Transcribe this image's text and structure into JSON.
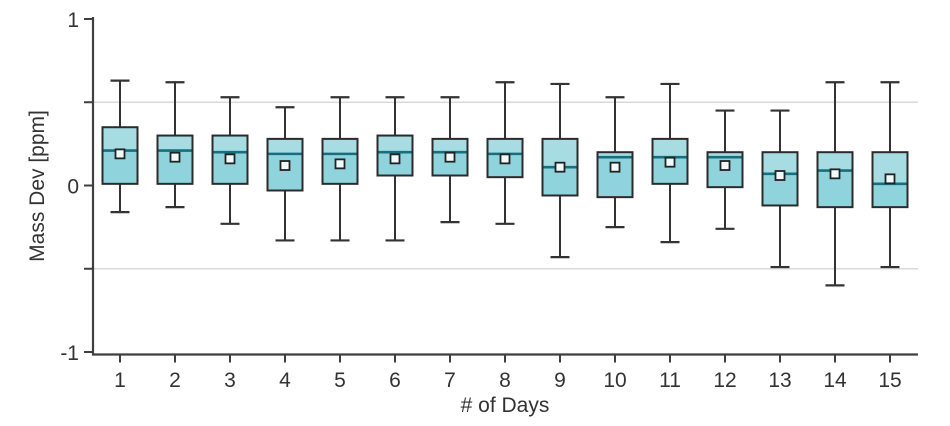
{
  "colors": {
    "box_fill_upper": "#a7dce3",
    "box_fill_lower": "#8fd3dc",
    "box_border": "#2b2b2b",
    "median_line": "#166f7d",
    "whisker": "#333333",
    "mean_marker_fill": "#f0fafa",
    "mean_marker_border": "#222222",
    "axis": "#3f3f3f",
    "gridline": "#d9d9d9",
    "text": "#333333",
    "background": "#ffffff"
  },
  "chart_data": {
    "type": "boxplot",
    "title": "",
    "xlabel": "# of Days",
    "ylabel": "Mass Dev [ppm]",
    "ylim": [
      -1,
      1
    ],
    "grid": "horizontal gridlines at +0.5 and -0.5 only",
    "legend_position": "none",
    "y_ticks_all": [
      1,
      0.5,
      0,
      -0.5,
      -1
    ],
    "y_ticks_labeled": [
      {
        "value": 1,
        "label": "1"
      },
      {
        "value": 0,
        "label": "0"
      },
      {
        "value": -1,
        "label": "-1"
      }
    ],
    "gridlines_y": [
      0.5,
      -0.5
    ],
    "categories": [
      "1",
      "2",
      "3",
      "4",
      "5",
      "6",
      "7",
      "8",
      "9",
      "10",
      "11",
      "12",
      "13",
      "14",
      "15"
    ],
    "series": [
      {
        "day": 1,
        "whisker_high": 0.63,
        "q3": 0.35,
        "median": 0.21,
        "mean": 0.19,
        "q1": 0.01,
        "whisker_low": -0.16
      },
      {
        "day": 2,
        "whisker_high": 0.62,
        "q3": 0.3,
        "median": 0.21,
        "mean": 0.17,
        "q1": 0.01,
        "whisker_low": -0.13
      },
      {
        "day": 3,
        "whisker_high": 0.53,
        "q3": 0.3,
        "median": 0.2,
        "mean": 0.16,
        "q1": 0.01,
        "whisker_low": -0.23
      },
      {
        "day": 4,
        "whisker_high": 0.47,
        "q3": 0.28,
        "median": 0.19,
        "mean": 0.12,
        "q1": -0.03,
        "whisker_low": -0.33
      },
      {
        "day": 5,
        "whisker_high": 0.53,
        "q3": 0.28,
        "median": 0.19,
        "mean": 0.13,
        "q1": 0.01,
        "whisker_low": -0.33
      },
      {
        "day": 6,
        "whisker_high": 0.53,
        "q3": 0.3,
        "median": 0.2,
        "mean": 0.16,
        "q1": 0.06,
        "whisker_low": -0.33
      },
      {
        "day": 7,
        "whisker_high": 0.53,
        "q3": 0.28,
        "median": 0.2,
        "mean": 0.17,
        "q1": 0.06,
        "whisker_low": -0.22
      },
      {
        "day": 8,
        "whisker_high": 0.62,
        "q3": 0.28,
        "median": 0.19,
        "mean": 0.16,
        "q1": 0.05,
        "whisker_low": -0.23
      },
      {
        "day": 9,
        "whisker_high": 0.61,
        "q3": 0.28,
        "median": 0.11,
        "mean": 0.11,
        "q1": -0.06,
        "whisker_low": -0.43
      },
      {
        "day": 10,
        "whisker_high": 0.53,
        "q3": 0.2,
        "median": 0.17,
        "mean": 0.11,
        "q1": -0.07,
        "whisker_low": -0.25
      },
      {
        "day": 11,
        "whisker_high": 0.61,
        "q3": 0.28,
        "median": 0.17,
        "mean": 0.14,
        "q1": 0.01,
        "whisker_low": -0.34
      },
      {
        "day": 12,
        "whisker_high": 0.45,
        "q3": 0.2,
        "median": 0.17,
        "mean": 0.12,
        "q1": -0.01,
        "whisker_low": -0.26
      },
      {
        "day": 13,
        "whisker_high": 0.45,
        "q3": 0.2,
        "median": 0.07,
        "mean": 0.06,
        "q1": -0.12,
        "whisker_low": -0.49
      },
      {
        "day": 14,
        "whisker_high": 0.62,
        "q3": 0.2,
        "median": 0.09,
        "mean": 0.07,
        "q1": -0.13,
        "whisker_low": -0.6
      },
      {
        "day": 15,
        "whisker_high": 0.62,
        "q3": 0.2,
        "median": 0.01,
        "mean": 0.04,
        "q1": -0.13,
        "whisker_low": -0.49
      }
    ]
  }
}
